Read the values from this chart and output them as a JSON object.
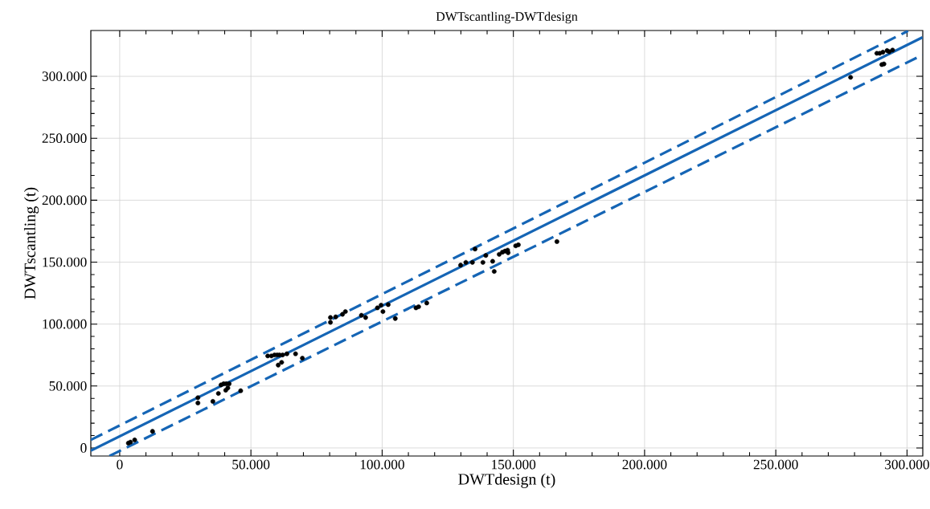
{
  "chart_data": {
    "type": "scatter",
    "title": "DWTscantling-DWTdesign",
    "xlabel": "DWTdesign (t)",
    "ylabel": "DWTscantling (t)",
    "xlim": [
      -11000,
      306000
    ],
    "ylim": [
      -6500,
      337000
    ],
    "xticks": [
      0,
      {
        "value": 50000,
        "label": "50.000"
      },
      {
        "value": 100000,
        "label": "100.000"
      },
      {
        "value": 150000,
        "label": "150.000"
      },
      {
        "value": 200000,
        "label": "200.000"
      },
      {
        "value": 250000,
        "label": "250.000"
      },
      {
        "value": 300000,
        "label": "300.000"
      }
    ],
    "yticks": [
      0,
      {
        "value": 50000,
        "label": "50.000"
      },
      {
        "value": 100000,
        "label": "100.000"
      },
      {
        "value": 150000,
        "label": "150.000"
      },
      {
        "value": 200000,
        "label": "200.000"
      },
      {
        "value": 250000,
        "label": "250.000"
      },
      {
        "value": 300000,
        "label": "300.000"
      }
    ],
    "grid": true,
    "series": [
      {
        "type": "line",
        "color": "#1565b5",
        "line_style": "solid",
        "marker": "none",
        "x": [
          -11000,
          305900
        ],
        "values": [
          -2200,
          331500
        ]
      },
      {
        "type": "line",
        "color": "#1565b5",
        "line_style": "dashed",
        "marker": "none",
        "x": [
          -11000,
          300400
        ],
        "values": [
          6500,
          336700
        ]
      },
      {
        "type": "line",
        "color": "#1565b5",
        "line_style": "dashed",
        "marker": "none",
        "x": [
          -3900,
          305900
        ],
        "values": [
          -6500,
          317300
        ]
      },
      {
        "color": "#000000",
        "marker": "circle",
        "x": [
          3300,
          4100,
          5700,
          12500,
          29800,
          29800,
          35500,
          37600,
          38600,
          39600,
          40600,
          41700,
          40400,
          41200,
          46100,
          56400,
          57800,
          59000,
          60000,
          60900,
          62100,
          63700,
          60400,
          61700,
          67000,
          69600,
          80300,
          80300,
          82300,
          84900,
          86000,
          92100,
          93700,
          98200,
          99600,
          100300,
          102300,
          105000,
          112900,
          113900,
          117000,
          129900,
          131900,
          134400,
          135400,
          138400,
          139500,
          142100,
          142700,
          144600,
          145800,
          146800,
          147800,
          148000,
          150900,
          151900,
          166600,
          278500,
          288500,
          289600,
          290800,
          292400,
          293200,
          294500,
          290400,
          291200
        ],
        "values": [
          3900,
          4700,
          6500,
          13400,
          40600,
          36300,
          37600,
          44000,
          50900,
          51800,
          51800,
          51800,
          46600,
          48400,
          46200,
          74300,
          74300,
          75100,
          75100,
          75100,
          75100,
          76000,
          66900,
          69100,
          76000,
          72500,
          105300,
          101400,
          105800,
          107900,
          110100,
          107100,
          105300,
          113100,
          115300,
          110100,
          115700,
          104500,
          113100,
          114000,
          117000,
          147600,
          149800,
          149800,
          160600,
          149800,
          155400,
          150700,
          142500,
          156300,
          158000,
          158900,
          159700,
          157600,
          163200,
          164000,
          166600,
          299200,
          318600,
          318600,
          319500,
          320800,
          319900,
          321200,
          309500,
          310000
        ]
      }
    ]
  }
}
